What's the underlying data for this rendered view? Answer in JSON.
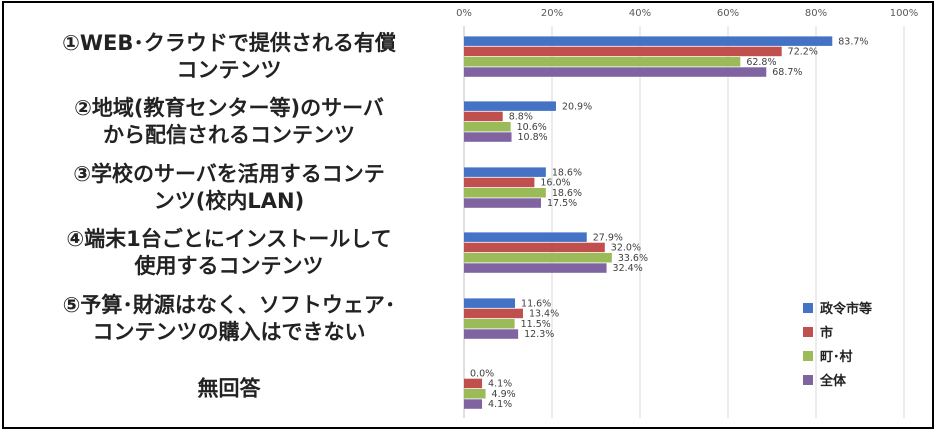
{
  "chart_data": {
    "type": "bar",
    "orientation": "horizontal",
    "categories": [
      [
        "①WEB･クラウドで提供される有償",
        "コンテンツ"
      ],
      [
        "②地域(教育センター等)のサーバ",
        "から配信されるコンテンツ"
      ],
      [
        "③学校のサーバを活用するコンテ",
        "ンツ(校内LAN)"
      ],
      [
        "④端末1台ごとにインストールして",
        "使用するコンテンツ"
      ],
      [
        "⑤予算･財源はなく、ソフトウェア･",
        "コンテンツの購入はできない"
      ],
      [
        "無回答"
      ]
    ],
    "series": [
      {
        "name": "政令市等",
        "color": "#4472C4",
        "values": [
          83.7,
          20.9,
          18.6,
          27.9,
          11.6,
          0.0
        ]
      },
      {
        "name": "市",
        "color": "#C0504D",
        "values": [
          72.2,
          8.8,
          16.0,
          32.0,
          13.4,
          4.1
        ]
      },
      {
        "name": "町･村",
        "color": "#9BBB59",
        "values": [
          62.8,
          10.6,
          18.6,
          33.6,
          11.5,
          4.9
        ]
      },
      {
        "name": "全体",
        "color": "#8064A2",
        "values": [
          68.7,
          10.8,
          17.5,
          32.4,
          12.3,
          4.1
        ]
      }
    ],
    "x_ticks": [
      "0%",
      "20%",
      "40%",
      "60%",
      "80%",
      "100%"
    ],
    "xlim": [
      0,
      100
    ],
    "value_suffix": "%",
    "grid": true,
    "legend_position": "right"
  }
}
